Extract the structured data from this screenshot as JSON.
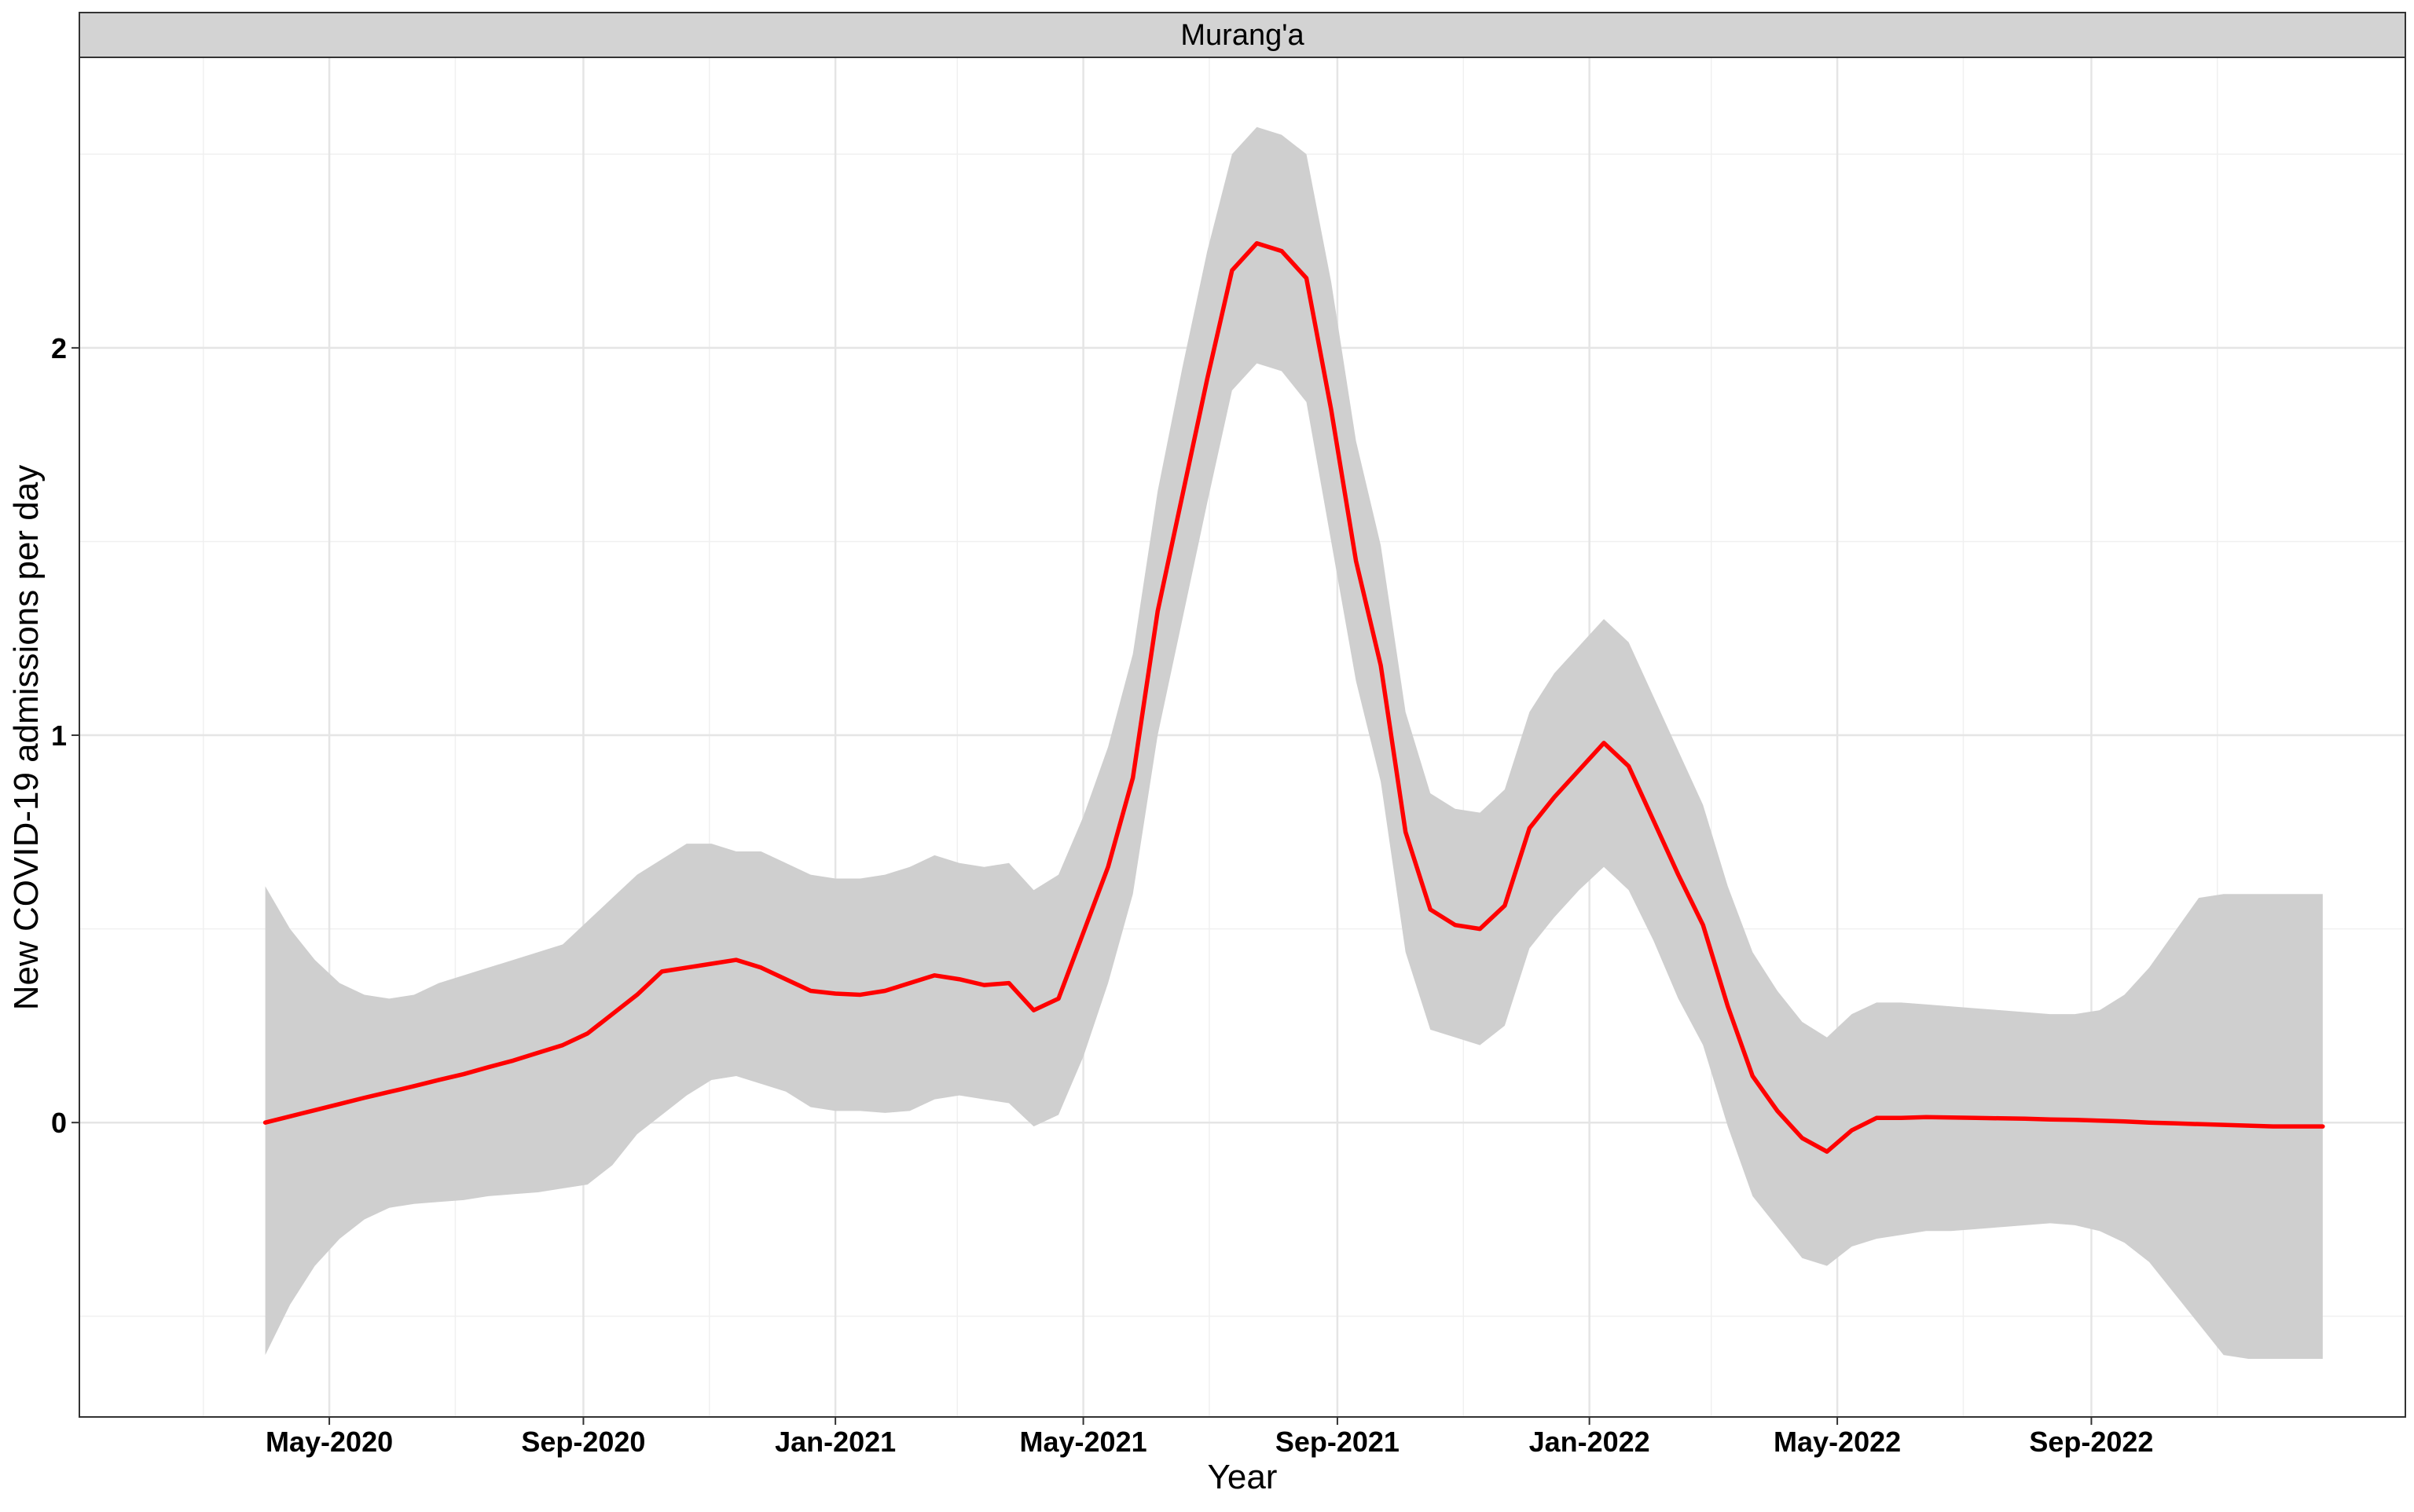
{
  "chart_data": {
    "type": "line",
    "facet_label": "Murang'a",
    "xlabel": "Year",
    "ylabel": "New COVID-19 admissions per day",
    "xlim": [
      "2020-01-01",
      "2023-01-31"
    ],
    "ylim": [
      -0.76,
      2.75
    ],
    "x_ticks": [
      {
        "date": "2020-05-01",
        "label": "May-2020"
      },
      {
        "date": "2020-09-01",
        "label": "Sep-2020"
      },
      {
        "date": "2021-01-01",
        "label": "Jan-2021"
      },
      {
        "date": "2021-05-01",
        "label": "May-2021"
      },
      {
        "date": "2021-09-01",
        "label": "Sep-2021"
      },
      {
        "date": "2022-01-01",
        "label": "Jan-2022"
      },
      {
        "date": "2022-05-01",
        "label": "May-2022"
      },
      {
        "date": "2022-09-01",
        "label": "Sep-2022"
      }
    ],
    "x_minor_ticks": [
      "2020-03-01",
      "2020-07-01",
      "2020-11-01",
      "2021-03-01",
      "2021-07-01",
      "2021-11-01",
      "2022-03-01",
      "2022-07-01",
      "2022-11-01"
    ],
    "y_ticks": [
      {
        "value": 0,
        "label": "0"
      },
      {
        "value": 1,
        "label": "1"
      },
      {
        "value": 2,
        "label": "2"
      }
    ],
    "y_minor_ticks": [
      -0.5,
      0.5,
      1.5,
      2.5
    ],
    "grid": true,
    "colors": {
      "line": "#ff0000",
      "ribbon": "#cfcfcf",
      "grid": "#e5e5e5",
      "strip": "#d3d3d3"
    },
    "series": [
      {
        "x": [
          "2020-03-31",
          "2020-04-12",
          "2020-04-24",
          "2020-05-06",
          "2020-05-18",
          "2020-05-30",
          "2020-06-11",
          "2020-06-23",
          "2020-07-05",
          "2020-07-17",
          "2020-07-29",
          "2020-08-10",
          "2020-08-22",
          "2020-09-03",
          "2020-09-15",
          "2020-09-27",
          "2020-10-09",
          "2020-10-21",
          "2020-11-02",
          "2020-11-14",
          "2020-11-26",
          "2020-12-08",
          "2020-12-20",
          "2021-01-01",
          "2021-01-13",
          "2021-01-25",
          "2021-02-06",
          "2021-02-18",
          "2021-03-02",
          "2021-03-14",
          "2021-03-26",
          "2021-04-07",
          "2021-04-19",
          "2021-05-01",
          "2021-05-13",
          "2021-05-25",
          "2021-06-06",
          "2021-06-18",
          "2021-06-30",
          "2021-07-12",
          "2021-07-24",
          "2021-08-05",
          "2021-08-17",
          "2021-08-29",
          "2021-09-10",
          "2021-09-22",
          "2021-10-04",
          "2021-10-16",
          "2021-10-28",
          "2021-11-09",
          "2021-11-21",
          "2021-12-03",
          "2021-12-15",
          "2021-12-27",
          "2022-01-08",
          "2022-01-20",
          "2022-02-01",
          "2022-02-13",
          "2022-02-25",
          "2022-03-09",
          "2022-03-21",
          "2022-04-02",
          "2022-04-14",
          "2022-04-26",
          "2022-05-08",
          "2022-05-20",
          "2022-06-01",
          "2022-06-13",
          "2022-06-25",
          "2022-07-07",
          "2022-07-19",
          "2022-07-31",
          "2022-08-12",
          "2022-08-24",
          "2022-09-05",
          "2022-09-17",
          "2022-09-29",
          "2022-10-11",
          "2022-10-23",
          "2022-11-04",
          "2022-11-16",
          "2022-11-28",
          "2022-12-10",
          "2022-12-22"
        ],
        "y": [
          0.0,
          0.016,
          0.032,
          0.048,
          0.064,
          0.079,
          0.094,
          0.11,
          0.125,
          0.143,
          0.16,
          0.18,
          0.2,
          0.23,
          0.28,
          0.33,
          0.39,
          0.4,
          0.41,
          0.42,
          0.4,
          0.37,
          0.34,
          0.333,
          0.33,
          0.34,
          0.36,
          0.38,
          0.37,
          0.355,
          0.36,
          0.29,
          0.32,
          0.49,
          0.66,
          0.89,
          1.32,
          1.62,
          1.92,
          2.2,
          2.27,
          2.25,
          2.18,
          1.84,
          1.45,
          1.18,
          0.75,
          0.55,
          0.51,
          0.5,
          0.56,
          0.76,
          0.84,
          0.91,
          0.98,
          0.92,
          0.78,
          0.64,
          0.51,
          0.3,
          0.12,
          0.03,
          -0.04,
          -0.075,
          -0.02,
          0.012,
          0.012,
          0.014,
          0.013,
          0.012,
          0.011,
          0.01,
          0.008,
          0.007,
          0.005,
          0.003,
          0.0,
          -0.002,
          -0.004,
          -0.006,
          -0.008,
          -0.01,
          -0.01,
          -0.01
        ],
        "lower": [
          -0.6,
          -0.47,
          -0.37,
          -0.3,
          -0.25,
          -0.22,
          -0.21,
          -0.205,
          -0.2,
          -0.19,
          -0.185,
          -0.18,
          -0.17,
          -0.16,
          -0.11,
          -0.03,
          0.02,
          0.07,
          0.11,
          0.12,
          0.1,
          0.08,
          0.04,
          0.03,
          0.03,
          0.025,
          0.03,
          0.06,
          0.07,
          0.06,
          0.05,
          -0.01,
          0.02,
          0.17,
          0.36,
          0.59,
          1.0,
          1.3,
          1.6,
          1.89,
          1.96,
          1.94,
          1.86,
          1.5,
          1.14,
          0.88,
          0.44,
          0.24,
          0.22,
          0.2,
          0.25,
          0.45,
          0.53,
          0.6,
          0.66,
          0.6,
          0.47,
          0.32,
          0.2,
          -0.01,
          -0.19,
          -0.27,
          -0.35,
          -0.37,
          -0.32,
          -0.3,
          -0.29,
          -0.28,
          -0.28,
          -0.275,
          -0.27,
          -0.265,
          -0.26,
          -0.265,
          -0.28,
          -0.31,
          -0.36,
          -0.44,
          -0.52,
          -0.6,
          -0.61,
          -0.61,
          -0.61,
          -0.61
        ],
        "upper": [
          0.61,
          0.5,
          0.42,
          0.36,
          0.33,
          0.32,
          0.33,
          0.36,
          0.38,
          0.4,
          0.42,
          0.44,
          0.46,
          0.52,
          0.58,
          0.64,
          0.68,
          0.72,
          0.72,
          0.7,
          0.7,
          0.67,
          0.64,
          0.63,
          0.63,
          0.64,
          0.66,
          0.69,
          0.67,
          0.66,
          0.67,
          0.6,
          0.64,
          0.79,
          0.97,
          1.21,
          1.63,
          1.95,
          2.25,
          2.5,
          2.57,
          2.55,
          2.5,
          2.17,
          1.76,
          1.49,
          1.06,
          0.85,
          0.81,
          0.8,
          0.86,
          1.06,
          1.16,
          1.23,
          1.3,
          1.24,
          1.1,
          0.96,
          0.82,
          0.61,
          0.44,
          0.34,
          0.26,
          0.22,
          0.28,
          0.31,
          0.31,
          0.305,
          0.3,
          0.295,
          0.29,
          0.285,
          0.28,
          0.28,
          0.29,
          0.33,
          0.4,
          0.49,
          0.58,
          0.59,
          0.59,
          0.59,
          0.59,
          0.59
        ]
      }
    ]
  }
}
